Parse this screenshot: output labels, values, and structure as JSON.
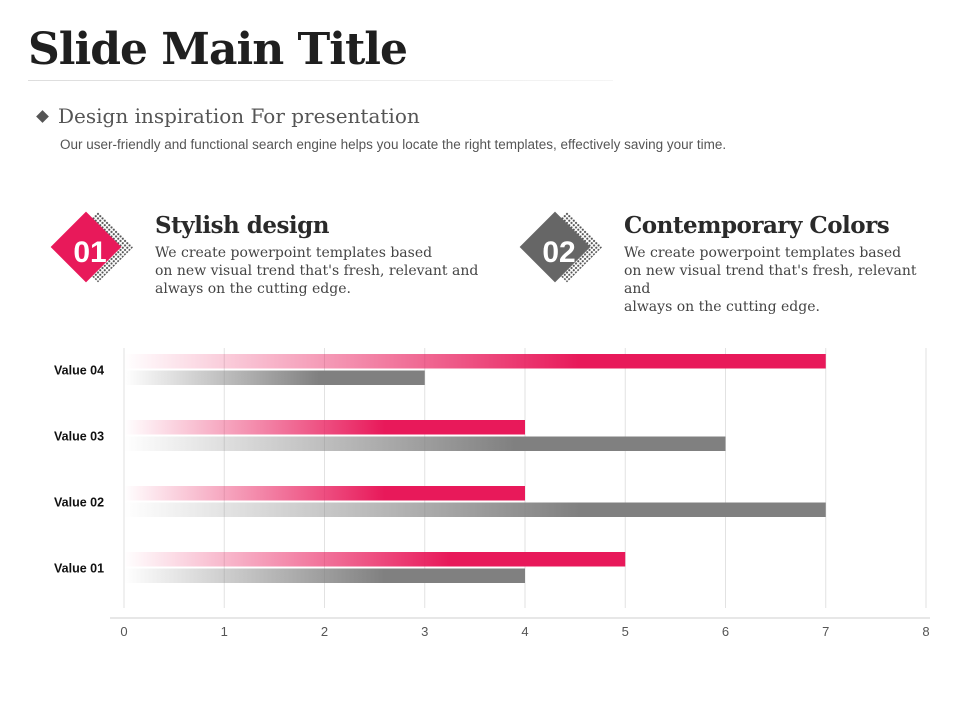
{
  "page": {
    "title": "Slide Main Title",
    "subtitle": "Design inspiration For presentation",
    "description": "Our user-friendly and functional search engine helps you locate the right templates, effectively saving your time."
  },
  "features": [
    {
      "number": "01",
      "heading": "Stylish design",
      "lines": [
        "We create powerpoint templates based",
        "on new visual trend that's fresh, relevant and",
        "always on the cutting edge."
      ],
      "color": "#e8195a"
    },
    {
      "number": "02",
      "heading": "Contemporary Colors",
      "lines": [
        "We create powerpoint templates based",
        "on new visual trend that's fresh, relevant",
        "and",
        "always on the cutting edge."
      ],
      "color": "#666666"
    }
  ],
  "colors": {
    "accent": "#e8195a",
    "gray": "#808080",
    "grid": "#e2e2e2"
  },
  "chart_data": {
    "type": "bar",
    "orientation": "horizontal",
    "categories": [
      "Value 04",
      "Value 03",
      "Value 02",
      "Value 01"
    ],
    "series": [
      {
        "values": [
          7,
          4,
          4,
          5
        ],
        "color": "#e8195a"
      },
      {
        "values": [
          3,
          6,
          7,
          4
        ],
        "color": "#808080"
      }
    ],
    "xlim": [
      0,
      8
    ],
    "xticks": [
      "0",
      "1",
      "2",
      "3",
      "4",
      "5",
      "6",
      "7",
      "8"
    ],
    "grid": true,
    "legend": "none"
  }
}
